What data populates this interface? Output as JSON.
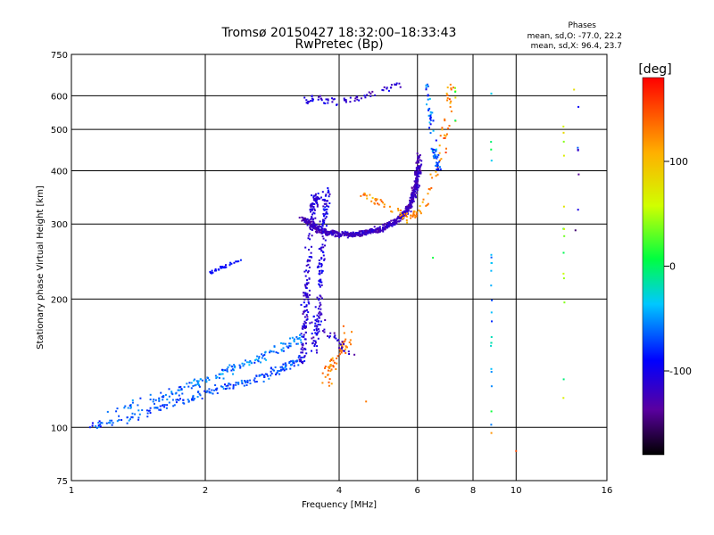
{
  "chart_data": {
    "type": "scatter",
    "title": "Tromsø 20150427 18:32:00–18:33:43",
    "subtitle": "RwPretec (Bp)",
    "xlabel": "Frequency [MHz]",
    "ylabel": "Stationary phase Virtual Height [km]",
    "x_scale": "log",
    "y_scale": "log",
    "xlim": [
      1,
      16
    ],
    "ylim": [
      75,
      750
    ],
    "x_ticks": [
      1,
      2,
      4,
      6,
      8,
      10,
      16
    ],
    "x_tick_labels": [
      "1",
      "2",
      "4",
      "6",
      "8",
      "10",
      "16"
    ],
    "y_ticks": [
      75,
      100,
      200,
      300,
      400,
      500,
      600,
      750
    ],
    "y_tick_labels": [
      "75",
      "100",
      "200",
      "300",
      "400",
      "500",
      "600",
      "750"
    ],
    "grid": true,
    "phases_box": {
      "title": "Phases",
      "line_o": "mean, sd,O:  -77.0, 22.2",
      "line_x": "mean, sd,X:  96.4, 23.7"
    },
    "colorbar": {
      "label": "[deg]",
      "range": [
        -180,
        180
      ],
      "ticks": [
        100,
        0,
        -100
      ],
      "tick_labels": [
        "100",
        "0",
        "-100"
      ],
      "colormap": "rainbow"
    },
    "clusters": [
      {
        "kind": "curve",
        "n": 220,
        "spread": 0.035,
        "phase": [
          -70,
          22
        ],
        "pts": [
          [
            1.1,
            101
          ],
          [
            1.35,
            105
          ],
          [
            1.6,
            112
          ],
          [
            1.9,
            118
          ],
          [
            2.2,
            124
          ],
          [
            2.5,
            128
          ],
          [
            2.8,
            134
          ],
          [
            3.1,
            140
          ],
          [
            3.3,
            145
          ]
        ]
      },
      {
        "kind": "curve",
        "n": 170,
        "spread": 0.04,
        "phase": [
          -60,
          22
        ],
        "pts": [
          [
            1.2,
            107
          ],
          [
            1.5,
            116
          ],
          [
            1.8,
            124
          ],
          [
            2.1,
            132
          ],
          [
            2.4,
            140
          ],
          [
            2.7,
            147
          ],
          [
            3.0,
            155
          ],
          [
            3.3,
            162
          ]
        ]
      },
      {
        "kind": "curve",
        "n": 30,
        "spread": 0.015,
        "phase": [
          -90,
          10
        ],
        "pts": [
          [
            2.05,
            230
          ],
          [
            2.2,
            238
          ],
          [
            2.4,
            247
          ]
        ]
      },
      {
        "kind": "curve",
        "n": 180,
        "spread": 0.03,
        "phase": [
          -110,
          20
        ],
        "pts": [
          [
            3.3,
            140
          ],
          [
            3.35,
            175
          ],
          [
            3.4,
            230
          ],
          [
            3.45,
            280
          ],
          [
            3.5,
            330
          ],
          [
            3.55,
            350
          ]
        ]
      },
      {
        "kind": "curve",
        "n": 160,
        "spread": 0.03,
        "phase": [
          -105,
          22
        ],
        "pts": [
          [
            3.5,
            150
          ],
          [
            3.6,
            185
          ],
          [
            3.65,
            240
          ],
          [
            3.7,
            300
          ],
          [
            3.75,
            360
          ]
        ]
      },
      {
        "kind": "curve",
        "n": 420,
        "spread": 0.022,
        "phase": [
          -125,
          15
        ],
        "pts": [
          [
            3.3,
            310
          ],
          [
            3.6,
            290
          ],
          [
            4.0,
            283
          ],
          [
            4.5,
            285
          ],
          [
            5.0,
            292
          ],
          [
            5.5,
            310
          ],
          [
            5.8,
            335
          ],
          [
            6.0,
            390
          ],
          [
            6.05,
            440
          ]
        ]
      },
      {
        "kind": "curve",
        "n": 260,
        "spread": 0.02,
        "phase": [
          -118,
          15
        ],
        "pts": [
          [
            3.4,
            300
          ],
          [
            3.8,
            287
          ],
          [
            4.3,
            283
          ],
          [
            4.8,
            289
          ],
          [
            5.3,
            300
          ],
          [
            5.7,
            322
          ],
          [
            5.95,
            360
          ],
          [
            6.05,
            410
          ]
        ]
      },
      {
        "kind": "curve",
        "n": 70,
        "spread": 0.03,
        "phase": [
          -110,
          20
        ],
        "pts": [
          [
            3.3,
            580
          ],
          [
            3.6,
            590
          ],
          [
            4.0,
            580
          ],
          [
            4.5,
            595
          ],
          [
            5.0,
            620
          ],
          [
            5.5,
            640
          ]
        ]
      },
      {
        "kind": "curve",
        "n": 110,
        "spread": 0.035,
        "phase": [
          125,
          25
        ],
        "pts": [
          [
            4.4,
            360
          ],
          [
            4.7,
            345
          ],
          [
            5.0,
            335
          ],
          [
            5.4,
            320
          ],
          [
            5.8,
            310
          ],
          [
            6.2,
            330
          ],
          [
            6.5,
            370
          ],
          [
            6.8,
            450
          ],
          [
            7.0,
            560
          ],
          [
            7.1,
            640
          ]
        ]
      },
      {
        "kind": "curve",
        "n": 70,
        "spread": 0.025,
        "phase": [
          -70,
          40
        ],
        "pts": [
          [
            6.3,
            640
          ],
          [
            6.4,
            560
          ],
          [
            6.5,
            480
          ],
          [
            6.6,
            430
          ],
          [
            6.7,
            400
          ]
        ]
      },
      {
        "kind": "curve",
        "n": 60,
        "spread": 0.04,
        "phase": [
          130,
          25
        ],
        "pts": [
          [
            3.7,
            125
          ],
          [
            3.8,
            135
          ],
          [
            3.95,
            145
          ],
          [
            4.1,
            155
          ],
          [
            4.2,
            170
          ]
        ]
      },
      {
        "kind": "curve",
        "n": 40,
        "spread": 0.05,
        "phase": [
          -120,
          30
        ],
        "pts": [
          [
            3.3,
            190
          ],
          [
            3.6,
            170
          ],
          [
            3.9,
            160
          ],
          [
            4.2,
            150
          ]
        ]
      },
      {
        "kind": "vline",
        "x": 8.8,
        "n": 22,
        "phase": [
          -40,
          50
        ],
        "y": [
          100,
          620
        ]
      },
      {
        "kind": "vline",
        "x": 12.8,
        "n": 14,
        "phase": [
          40,
          60
        ],
        "y": [
          115,
          640
        ]
      },
      {
        "kind": "vline",
        "x": 13.8,
        "n": 6,
        "phase": [
          -100,
          60
        ],
        "y": [
          280,
          640
        ]
      },
      {
        "kind": "vline",
        "x": 7.3,
        "n": 6,
        "phase": [
          60,
          50
        ],
        "y": [
          520,
          640
        ]
      }
    ],
    "extra_points": [
      {
        "x": 8.8,
        "y": 97,
        "phase": 120
      },
      {
        "x": 10.0,
        "y": 88,
        "phase": 150
      },
      {
        "x": 4.6,
        "y": 115,
        "phase": 130
      },
      {
        "x": 6.5,
        "y": 250,
        "phase": 10
      },
      {
        "x": 13.6,
        "y": 290,
        "phase": -150
      },
      {
        "x": 13.5,
        "y": 620,
        "phase": 80
      }
    ]
  }
}
